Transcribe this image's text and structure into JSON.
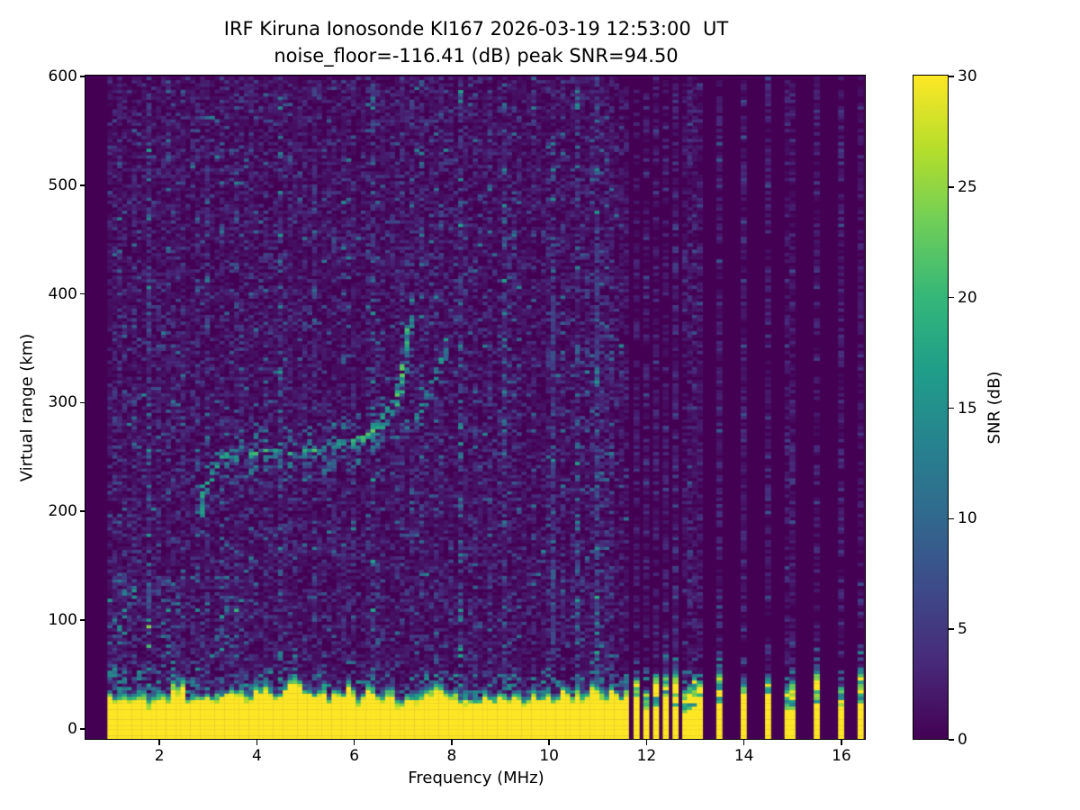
{
  "chart_data": {
    "type": "heatmap",
    "title": "IRF Kiruna Ionosonde KI167 2026-03-19 12:53:00  UT",
    "subtitle": "noise_floor=-116.41 (dB) peak SNR=94.50",
    "station": "IRF Kiruna Ionosonde KI167",
    "timestamp_ut": "2026-03-19 12:53:00",
    "noise_floor_db": -116.41,
    "peak_snr_db": 94.5,
    "xlabel": "Frequency (MHz)",
    "ylabel": "Virtual range (km)",
    "colorbar_label": "SNR (dB)",
    "xlim": [
      0.5,
      16.5
    ],
    "ylim": [
      -10,
      600
    ],
    "snr_range_db": [
      0,
      30
    ],
    "x_ticks": [
      2,
      4,
      6,
      8,
      10,
      12,
      14,
      16
    ],
    "y_ticks": [
      0,
      100,
      200,
      300,
      400,
      500,
      600
    ],
    "colorbar_ticks": [
      0,
      5,
      10,
      15,
      20,
      25,
      30
    ],
    "colormap": "viridis",
    "colormap_stops": [
      "#440154",
      "#482878",
      "#3e4989",
      "#31688e",
      "#26828e",
      "#1f9e89",
      "#35b779",
      "#6ece58",
      "#b5de2b",
      "#fde725"
    ],
    "freq_resolution_mhz": 0.1,
    "range_resolution_km": 3,
    "continuous_sweep_mhz": [
      1.0,
      11.6
    ],
    "discrete_freqs_mhz": [
      11.62,
      11.81,
      12.0,
      12.19,
      12.38,
      12.57,
      12.76,
      12.95,
      13.1,
      13.47,
      13.98,
      14.48,
      14.95,
      15.48,
      15.96,
      16.4
    ],
    "ground_clutter": {
      "typical_top_km": 30,
      "max_top_km": 46,
      "value_db": 30
    },
    "echo_traces": [
      {
        "name": "F-layer O-mode",
        "half_width_km": 7,
        "density": 0.72,
        "snr_db": [
          10,
          23
        ],
        "points_mhz_km": [
          [
            2.85,
            198
          ],
          [
            3.0,
            228
          ],
          [
            3.25,
            246
          ],
          [
            3.6,
            252
          ],
          [
            4.2,
            254
          ],
          [
            4.8,
            255
          ],
          [
            5.4,
            257
          ],
          [
            5.9,
            261
          ],
          [
            6.3,
            269
          ],
          [
            6.6,
            281
          ],
          [
            6.85,
            298
          ],
          [
            7.0,
            318
          ],
          [
            7.1,
            348
          ],
          [
            7.18,
            382
          ],
          [
            7.22,
            400
          ]
        ]
      },
      {
        "name": "F-layer X-mode",
        "half_width_km": 5,
        "density": 0.5,
        "snr_db": [
          8,
          17
        ],
        "points_mhz_km": [
          [
            6.5,
            260
          ],
          [
            6.9,
            269
          ],
          [
            7.2,
            283
          ],
          [
            7.5,
            302
          ],
          [
            7.7,
            322
          ],
          [
            7.85,
            341
          ],
          [
            7.95,
            357
          ]
        ]
      }
    ],
    "interference_striations_mhz": [
      1.75,
      2.2,
      2.95,
      3.62,
      4.45,
      5.15,
      6.35,
      7.35,
      8.2,
      9.05,
      10.1,
      10.55,
      11.0
    ]
  }
}
